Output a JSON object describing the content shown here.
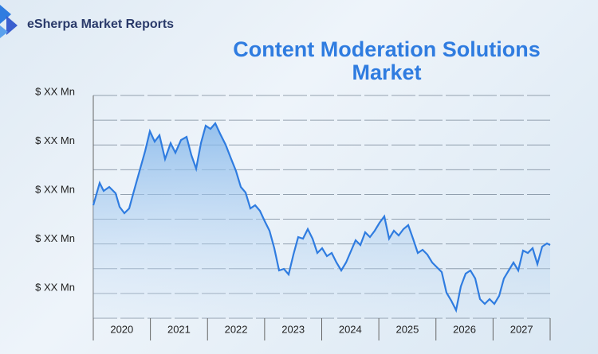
{
  "brand": "eSherpa Market Reports",
  "title": "Content Moderation Solutions Market",
  "y_axis_labels": [
    "$ XX Mn",
    "$ XX Mn",
    "$ XX Mn",
    "$ XX Mn",
    "$ XX Mn"
  ],
  "x_axis_labels": [
    "2020",
    "2021",
    "2022",
    "2023",
    "2024",
    "2025",
    "2026",
    "2027"
  ]
}
